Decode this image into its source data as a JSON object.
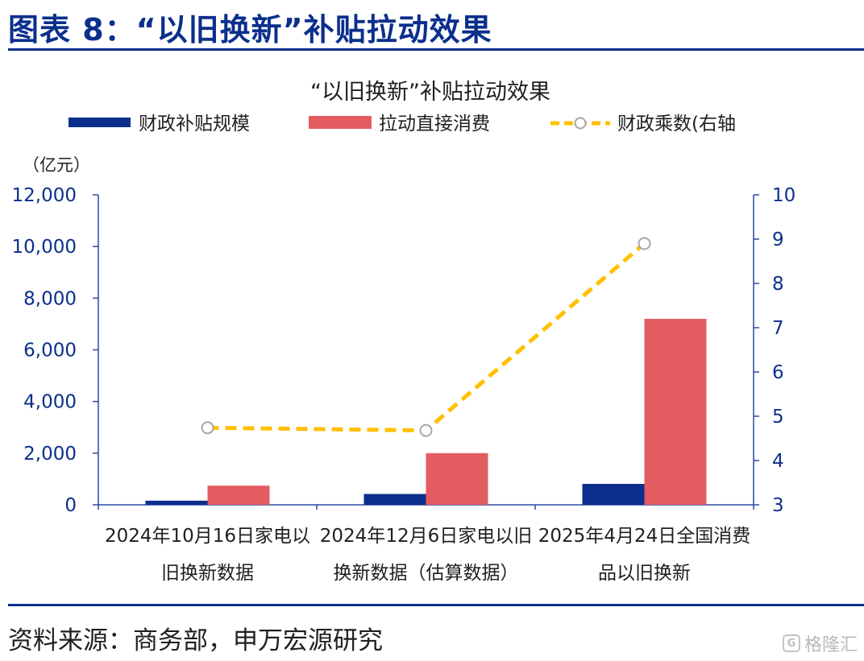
{
  "header": {
    "figure_title": "图表 8：“以旧换新”补贴拉动效果"
  },
  "footer": {
    "source": "资料来源：商务部，申万宏源研究",
    "watermark": "格隆汇"
  },
  "chart_data": {
    "type": "bar",
    "title": "“以旧换新”补贴拉动效果",
    "y_unit_label": "（亿元）",
    "categories": [
      [
        "2024年10月16日家电以",
        "旧换新数据"
      ],
      [
        "2024年12月6日家电以旧",
        "换新数据（估算数据）"
      ],
      [
        "2025年4月24日全国消费",
        "品以旧换新"
      ]
    ],
    "series": [
      {
        "name": "财政补贴规模",
        "type": "bar",
        "axis": "left",
        "color": "#0b2f8c",
        "values": [
          160,
          420,
          810
        ]
      },
      {
        "name": "拉动直接消费",
        "type": "bar",
        "axis": "left",
        "color": "#e35d60",
        "values": [
          740,
          2000,
          7200
        ]
      },
      {
        "name": "财政乘数(右轴",
        "type": "line",
        "axis": "right",
        "color": "#ffc000",
        "values": [
          4.74,
          4.68,
          8.9
        ]
      }
    ],
    "y_left": {
      "ylim": [
        0,
        12000
      ],
      "ticks": [
        "0",
        "2,000",
        "4,000",
        "6,000",
        "8,000",
        "10,000",
        "12,000"
      ]
    },
    "y_right": {
      "ylim": [
        3,
        10
      ],
      "ticks": [
        "3",
        "4",
        "5",
        "6",
        "7",
        "8",
        "9",
        "10"
      ]
    },
    "legend_position": "top",
    "grid": false
  }
}
